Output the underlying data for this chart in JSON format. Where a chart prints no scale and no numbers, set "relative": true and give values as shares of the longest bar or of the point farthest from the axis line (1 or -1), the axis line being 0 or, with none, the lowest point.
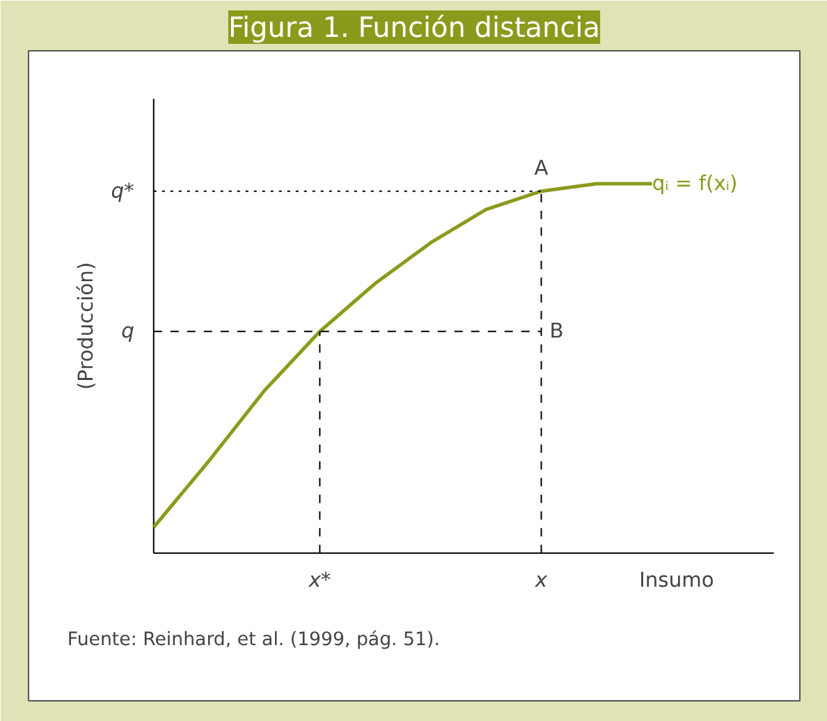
{
  "chart_data": {
    "type": "line",
    "title": "Figura 1. Función distancia",
    "xlabel": "Insumo",
    "ylabel": "(Producción)",
    "relative": true,
    "categories": [
      null,
      null,
      null,
      "x*",
      null,
      null,
      null,
      "x",
      null,
      null,
      null,
      null
    ],
    "series": [
      {
        "name": "qᵢ = f(xᵢ)",
        "color": "#8b9a1c",
        "values": [
          0.07,
          0.25,
          0.44,
          0.6,
          0.73,
          0.84,
          0.93,
          0.98,
          1,
          1,
          null,
          null
        ]
      }
    ],
    "ref_lines": [
      {
        "axis": "x",
        "value": "x*",
        "line_style": "dashed"
      },
      {
        "axis": "x",
        "value": "x",
        "line_style": "dashed"
      },
      {
        "axis": "y",
        "value": 0.6,
        "label": "q",
        "line_style": "dashed"
      },
      {
        "axis": "y",
        "value": 0.98,
        "label": "q*",
        "line_style": "dotted"
      }
    ],
    "annotations": [
      "A",
      "B",
      "Fuente: Reinhard, et al. (1999, pág. 51)."
    ],
    "marker": "none",
    "line_style": "solid"
  }
}
